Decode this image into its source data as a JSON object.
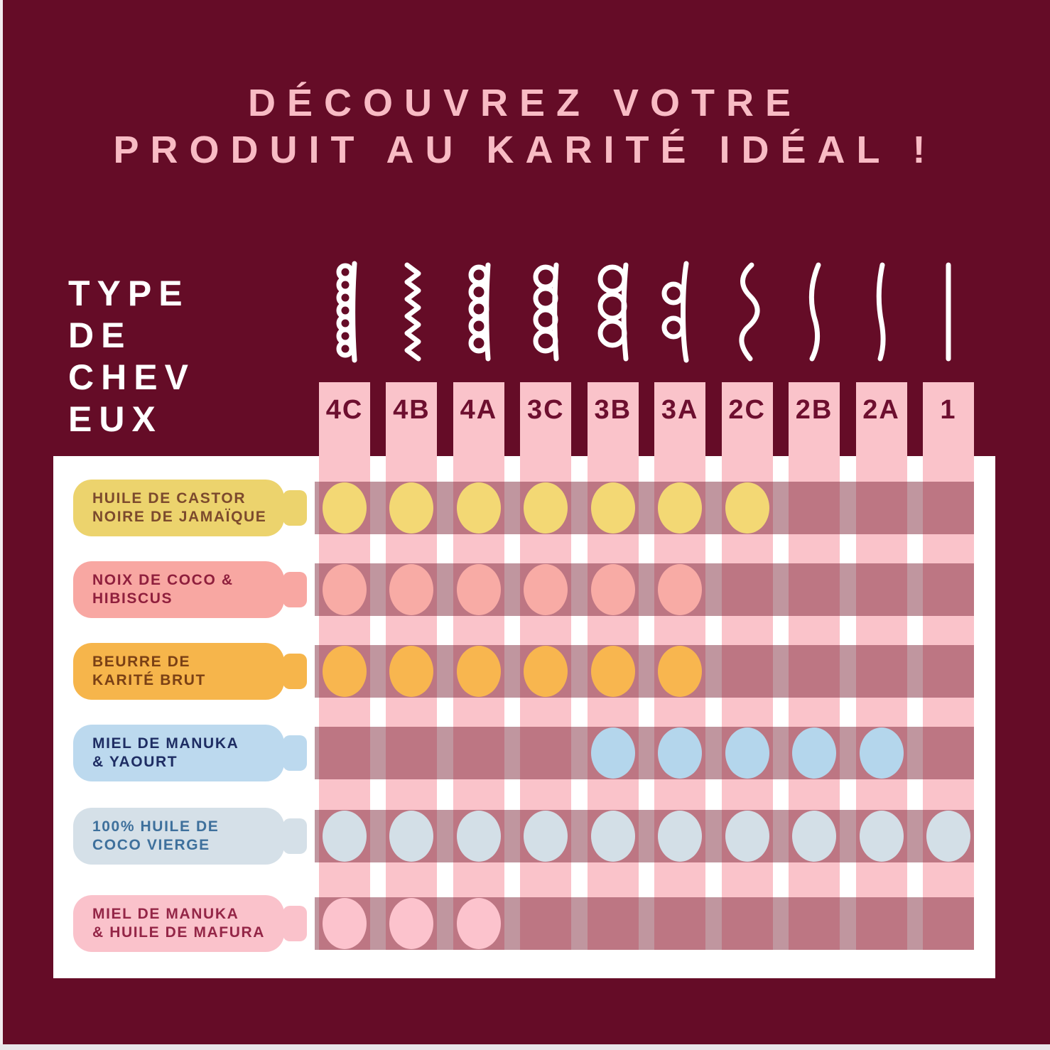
{
  "page": {
    "background_color": "#650c27",
    "panel_color": "#ffffff"
  },
  "title": {
    "line1": "DÉCOUVREZ VOTRE",
    "line2": "PRODUIT AU KARITÉ IDÉAL !",
    "color": "#f8bbc4"
  },
  "hair_type_heading": {
    "lines": [
      "TYPE",
      "DE",
      "CHEV",
      "EUX"
    ],
    "color": "#ffffff"
  },
  "chart_data": {
    "type": "matrix",
    "title": "DÉCOUVREZ VOTRE PRODUIT AU KARITÉ IDÉAL !",
    "row_axis_label": "TYPE DE CHEVEUX",
    "column_strip_color": "#fac3ca",
    "row_band_color": "rgba(121,31,52,0.47)",
    "column_header_text_color": "#6d0f2f",
    "curl_icon_color": "#ffffff",
    "columns": [
      {
        "label": "4C",
        "icon": "curl-4c-icon"
      },
      {
        "label": "4B",
        "icon": "curl-4b-icon"
      },
      {
        "label": "4A",
        "icon": "curl-4a-icon"
      },
      {
        "label": "3C",
        "icon": "curl-3c-icon"
      },
      {
        "label": "3B",
        "icon": "curl-3b-icon"
      },
      {
        "label": "3A",
        "icon": "curl-3a-icon"
      },
      {
        "label": "2C",
        "icon": "wave-2c-icon"
      },
      {
        "label": "2B",
        "icon": "wave-2b-icon"
      },
      {
        "label": "2A",
        "icon": "wave-2a-icon"
      },
      {
        "label": "1",
        "icon": "straight-1-icon"
      }
    ],
    "rows": [
      {
        "label": "HUILE DE CASTOR NOIRE DE JAMAÏQUE",
        "label_lines": [
          "HUILE DE CASTOR",
          "NOIRE DE JAMAÏQUE"
        ],
        "tag_color": "#ecd36d",
        "label_color": "#7c4a2d",
        "dot_color": "#f3d874",
        "marks": [
          "4C",
          "4B",
          "4A",
          "3C",
          "3B",
          "3A",
          "2C"
        ]
      },
      {
        "label": "NOIX DE COCO & HIBISCUS",
        "label_lines": [
          "NOIX DE COCO &",
          "HIBISCUS"
        ],
        "tag_color": "#f8a7a2",
        "label_color": "#8f1f3d",
        "dot_color": "#f8aba5",
        "marks": [
          "4C",
          "4B",
          "4A",
          "3C",
          "3B",
          "3A"
        ]
      },
      {
        "label": "BEURRE DE KARITÉ BRUT",
        "label_lines": [
          "BEURRE DE",
          "KARITÉ BRUT"
        ],
        "tag_color": "#f6b54b",
        "label_color": "#7a4015",
        "dot_color": "#f8b64f",
        "marks": [
          "4C",
          "4B",
          "4A",
          "3C",
          "3B",
          "3A"
        ]
      },
      {
        "label": "MIEL DE MANUKA & YAOURT",
        "label_lines": [
          "MIEL DE MANUKA",
          "& YAOURT"
        ],
        "tag_color": "#bcd9ee",
        "label_color": "#1e2d63",
        "dot_color": "#b4d6ec",
        "marks": [
          "3B",
          "3A",
          "2C",
          "2B",
          "2A"
        ]
      },
      {
        "label": "100% HUILE DE COCO VIERGE",
        "label_lines": [
          "100% HUILE DE",
          "COCO VIERGE"
        ],
        "tag_color": "#d5e0e8",
        "label_color": "#3e709c",
        "dot_color": "#d3dfe7",
        "marks": [
          "4C",
          "4B",
          "4A",
          "3C",
          "3B",
          "3A",
          "2C",
          "2B",
          "2A",
          "1"
        ]
      },
      {
        "label": "MIEL DE MANUKA & HUILE DE MAFURA",
        "label_lines": [
          "MIEL DE MANUKA",
          "& HUILE DE MAFURA"
        ],
        "tag_color": "#fac2cb",
        "label_color": "#942647",
        "dot_color": "#fcc3cd",
        "marks": [
          "4C",
          "4B",
          "4A"
        ]
      }
    ]
  }
}
